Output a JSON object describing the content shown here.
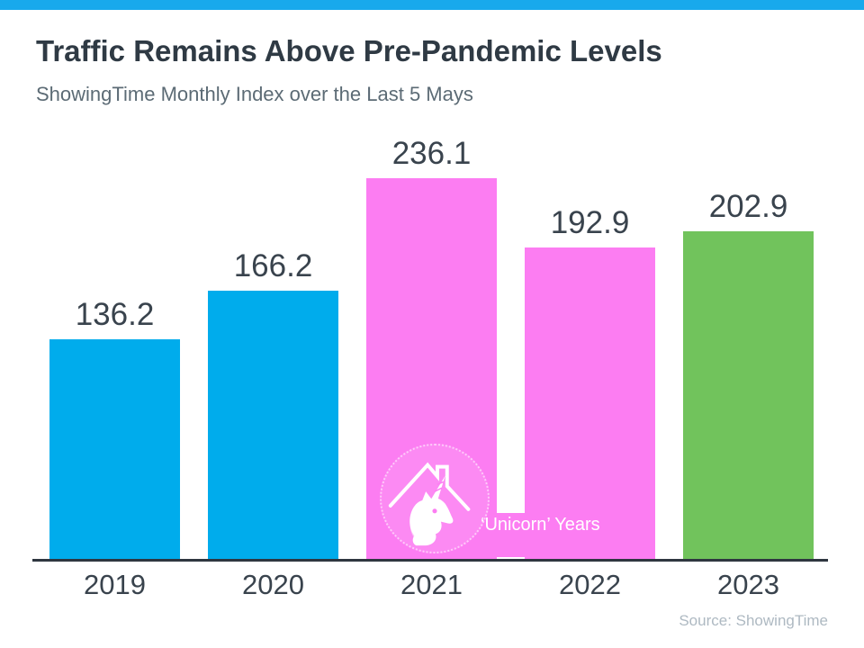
{
  "theme": {
    "accent_bar": "#18A9EC",
    "bar_blue": "#00ACEC",
    "bar_pink": "#FC7DF2",
    "bar_green": "#71C35C",
    "title_text": "#2F3A44",
    "subtitle_text": "#5C6B75",
    "value_text": "#39434D",
    "axis_line": "#2E3640",
    "annotation_text": "#FFFFFF",
    "source_text": "#AEB9C2"
  },
  "chart_data": {
    "type": "bar",
    "title": "Traffic Remains Above Pre-Pandemic Levels",
    "subtitle": "ShowingTime Monthly Index over the Last 5 Mays",
    "categories": [
      "2019",
      "2020",
      "2021",
      "2022",
      "2023"
    ],
    "values": [
      136.2,
      166.2,
      236.1,
      192.9,
      202.9
    ],
    "value_labels": [
      "136.2",
      "166.2",
      "236.1",
      "192.9",
      "202.9"
    ],
    "bar_colors": [
      "#00ACEC",
      "#00ACEC",
      "#FC7DF2",
      "#FC7DF2",
      "#71C35C"
    ],
    "ylim": [
      0,
      250
    ],
    "grid": false,
    "legend": "none",
    "annotation": {
      "label": "‘Unicorn’ Years",
      "applies_to": [
        "2021",
        "2022"
      ],
      "icon": "unicorn-house-logo"
    },
    "source": "Source: ShowingTime"
  }
}
